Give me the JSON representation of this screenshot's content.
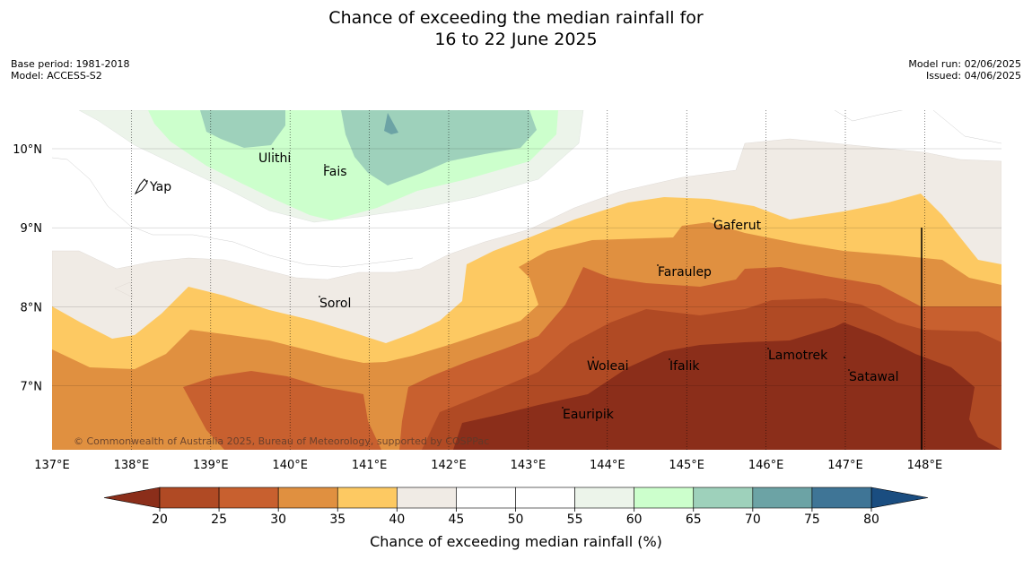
{
  "title": {
    "line1": "Chance of exceeding the median rainfall for",
    "line2": "16 to 22 June 2025"
  },
  "meta": {
    "base_period": "Base period: 1981-2018",
    "model": "Model: ACCESS-S2",
    "model_run": "Model run: 02/06/2025",
    "issued": "Issued: 04/06/2025"
  },
  "map": {
    "lon_ticks": [
      "137°E",
      "138°E",
      "139°E",
      "140°E",
      "141°E",
      "142°E",
      "143°E",
      "144°E",
      "145°E",
      "146°E",
      "147°E",
      "148°E"
    ],
    "lat_ticks": [
      "10°N",
      "9°N",
      "8°N",
      "7°N"
    ],
    "places": [
      {
        "name": "Yap"
      },
      {
        "name": "Ulithi"
      },
      {
        "name": "Fais"
      },
      {
        "name": "Gaferut"
      },
      {
        "name": "Faraulep"
      },
      {
        "name": "Sorol"
      },
      {
        "name": "Lamotrek"
      },
      {
        "name": "Woleai"
      },
      {
        "name": "Ifalik"
      },
      {
        "name": "Satawal"
      },
      {
        "name": "Eauripik"
      }
    ],
    "copyright": "© Commonwealth of Australia 2025, Bureau of Meteorology, supported by COSPPac",
    "colors": {
      "below_20": "#8b2e1a",
      "20_25": "#b04a24",
      "25_30": "#c8602f",
      "30_35": "#e09040",
      "35_40": "#fdc962",
      "40_45": "#f0ebe5",
      "45_55": "#ffffff",
      "55_60": "#ecf4ea",
      "60_65": "#ccffcc",
      "65_70": "#9ed1bb",
      "70_75": "#6ca3a5",
      "75_80": "#3f7596",
      "above_80": "#1a4d80"
    }
  },
  "colorbar": {
    "ticks": [
      "20",
      "25",
      "30",
      "35",
      "40",
      "45",
      "50",
      "55",
      "60",
      "65",
      "70",
      "75",
      "80"
    ],
    "colors": [
      "#b04a24",
      "#c8602f",
      "#e09040",
      "#fdc962",
      "#f0ebe5",
      "#ffffff",
      "#ffffff",
      "#ecf4ea",
      "#ccffcc",
      "#9ed1bb",
      "#6ca3a5",
      "#3f7596"
    ],
    "under_color": "#8b2e1a",
    "over_color": "#1a4d80",
    "label": "Chance of exceeding median rainfall (%)"
  }
}
